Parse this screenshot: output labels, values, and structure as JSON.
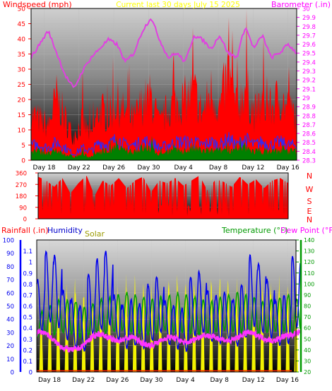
{
  "colors": {
    "windspeed": "#ff0000",
    "gust": "#ff0000",
    "avg_wind": "#2a2aff",
    "barometer": "#e040e0",
    "direction": "#ff0000",
    "humidity": "#0000ee",
    "solar": "#ffff00",
    "temperature": "#00a000",
    "dew_point": "#ff33ff",
    "rainfall": "#ff2200",
    "ticks_left": "#ff0000",
    "ticks_right": "#ff00ff",
    "rain_axis": "#0000ff",
    "temp_axis": "#009900",
    "title": "#ffff00",
    "solar_label": "#9a9a00"
  },
  "chart_data": [
    {
      "id": "wind",
      "type": "area",
      "title": "Current last 30 days July 15 2025",
      "ylabel_left": "Windspeed (mph)",
      "ylabel_right": "Barometer (.in)",
      "ylim": [
        0,
        50
      ],
      "ylim_right": [
        28.3,
        30.0
      ],
      "yticks": [
        0,
        5,
        10,
        15,
        20,
        25,
        30,
        35,
        40,
        45,
        50
      ],
      "yticks_right": [
        "28.3",
        "28.4",
        "28.5",
        "28.6",
        "28.7",
        "28.8",
        "28.9",
        "29",
        "29.1",
        "29.2",
        "29.3",
        "29.4",
        "29.5",
        "29.6",
        "29.7",
        "29.8",
        "29.9",
        "30"
      ],
      "xticks": [
        "Day 18",
        "Day 22",
        "Day 26",
        "Day 30",
        "Day 4",
        "Day 8",
        "Day 12",
        "Day 16"
      ],
      "xtick_days": [
        1.5,
        5.5,
        9.5,
        13.5,
        17.5,
        21.5,
        25.5,
        29.5
      ],
      "days": 30.5,
      "series": [
        {
          "key": "gust",
          "values": [
            16,
            14,
            12,
            22,
            14,
            8,
            14,
            8,
            18,
            15,
            20,
            16,
            14,
            20,
            22,
            12,
            18,
            20,
            21,
            24,
            16,
            24,
            18,
            30,
            18,
            26,
            16,
            20,
            18,
            22,
            17,
            16
          ]
        },
        {
          "key": "avg_wind",
          "values": [
            5,
            5,
            4,
            6,
            4,
            2,
            4,
            3,
            6,
            5,
            7,
            5,
            5,
            6,
            6,
            4,
            5,
            6,
            6,
            6,
            5,
            6,
            5,
            7,
            5,
            7,
            5,
            6,
            5,
            6,
            5,
            5
          ]
        },
        {
          "key": "windspeed",
          "values": [
            3,
            3,
            2,
            3,
            2,
            1,
            2,
            1,
            3,
            3,
            4,
            3,
            3,
            4,
            4,
            2,
            3,
            3,
            3,
            4,
            3,
            3,
            3,
            4,
            3,
            4,
            3,
            3,
            3,
            3,
            3,
            3
          ]
        },
        {
          "key": "barometer",
          "values": [
            29.45,
            29.6,
            29.75,
            29.5,
            29.25,
            29.1,
            29.3,
            29.45,
            29.55,
            29.65,
            29.6,
            29.4,
            29.5,
            29.75,
            29.9,
            29.65,
            29.45,
            29.5,
            29.4,
            29.7,
            29.65,
            29.55,
            29.7,
            29.5,
            29.45,
            29.8,
            29.55,
            29.7,
            29.45,
            29.5,
            29.6,
            29.5
          ]
        }
      ]
    },
    {
      "id": "direction",
      "type": "area",
      "ylim": [
        0,
        360
      ],
      "yticks": [
        0,
        90,
        180,
        270,
        360
      ],
      "ylabel_right_letters": [
        "N",
        "W",
        "S",
        "E",
        "N"
      ],
      "days": 30.5,
      "series": [
        {
          "key": "direction",
          "values": [
            330,
            300,
            250,
            320,
            200,
            280,
            340,
            180,
            300,
            260,
            320,
            240,
            300,
            330,
            210,
            300,
            280,
            320,
            260,
            300,
            340,
            220,
            310,
            290,
            250,
            330,
            270,
            310,
            240,
            300,
            320,
            280
          ]
        }
      ]
    },
    {
      "id": "weather",
      "type": "line",
      "ylabel_left": "Rainfall (.in)",
      "ylabel_humidity": "Humidity",
      "ylabel_solar": "Solar",
      "ylabel_right": "Temperature (°F)",
      "ylabel_dew": "Dew Point (°F)",
      "ylim_rain": [
        0,
        1.2
      ],
      "ylim_humidity": [
        0,
        100
      ],
      "ylim_temp": [
        20,
        140
      ],
      "yticks_humidity": [
        0,
        10,
        20,
        30,
        40,
        50,
        60,
        70,
        80,
        90,
        100
      ],
      "yticks_rain": [
        "0",
        "0.1",
        "0.2",
        "0.3",
        "0.4",
        "0.5",
        "0.6",
        "0.7",
        "0.8",
        "0.9",
        "1",
        "1.1"
      ],
      "yticks_temp": [
        20,
        30,
        40,
        50,
        60,
        70,
        80,
        90,
        100,
        110,
        120,
        130,
        140
      ],
      "xticks": [
        "Day 18",
        "Day 22",
        "Day 26",
        "Day 30",
        "Day 4",
        "Day 8",
        "Day 12",
        "Day 16"
      ],
      "xtick_days": [
        1.5,
        5.5,
        9.5,
        13.5,
        17.5,
        21.5,
        25.5,
        29.5
      ],
      "days": 30.5,
      "series": [
        {
          "key": "humidity",
          "max": [
            70,
            92,
            88,
            62,
            55,
            50,
            74,
            86,
            92,
            58,
            50,
            55,
            52,
            66,
            72,
            54,
            50,
            48,
            72,
            76,
            62,
            58,
            60,
            55,
            66,
            88,
            82,
            70,
            54,
            58,
            88
          ],
          "min": [
            30,
            38,
            34,
            25,
            18,
            16,
            28,
            32,
            36,
            24,
            18,
            20,
            18,
            24,
            30,
            20,
            18,
            16,
            28,
            30,
            24,
            22,
            24,
            20,
            26,
            34,
            30,
            26,
            20,
            22,
            34
          ]
        },
        {
          "key": "solar",
          "values": [
            50,
            60,
            68,
            72,
            70,
            65,
            60,
            58,
            62,
            70,
            74,
            72,
            68,
            66,
            70,
            74,
            76,
            72,
            70,
            68,
            72,
            74,
            76,
            70,
            66,
            62,
            70,
            74,
            72,
            70,
            66
          ]
        },
        {
          "key": "temperature",
          "max": [
            75,
            80,
            85,
            85,
            84,
            78,
            82,
            86,
            88,
            90,
            92,
            90,
            88,
            86,
            88,
            90,
            92,
            90,
            88,
            86,
            84,
            88,
            90,
            92,
            90,
            88,
            84,
            86,
            88,
            90,
            86
          ],
          "min": [
            52,
            55,
            54,
            56,
            55,
            52,
            54,
            56,
            55,
            57,
            58,
            56,
            55,
            54,
            56,
            58,
            57,
            56,
            55,
            54,
            55,
            56,
            58,
            57,
            56,
            54,
            55,
            56,
            57,
            58,
            56
          ]
        },
        {
          "key": "dew_point",
          "values": [
            56,
            56,
            48,
            42,
            40,
            42,
            50,
            55,
            52,
            48,
            50,
            52,
            46,
            44,
            48,
            52,
            50,
            46,
            50,
            54,
            52,
            50,
            48,
            52,
            56,
            54,
            50,
            48,
            52,
            54,
            56
          ]
        },
        {
          "key": "rainfall",
          "values": [
            0.01,
            0.01,
            0.01,
            0.01,
            0.01,
            0.01,
            0.01,
            0.01,
            0.01,
            0.01,
            0.01,
            0.01,
            0.01,
            0.01,
            0.01,
            0.01,
            0.01,
            0.01,
            0.01,
            0.01,
            0.01,
            0.01,
            0.01,
            0.01,
            0.01,
            0.01,
            0.01,
            0.01,
            0.01,
            0.01,
            0.01
          ]
        }
      ]
    }
  ]
}
